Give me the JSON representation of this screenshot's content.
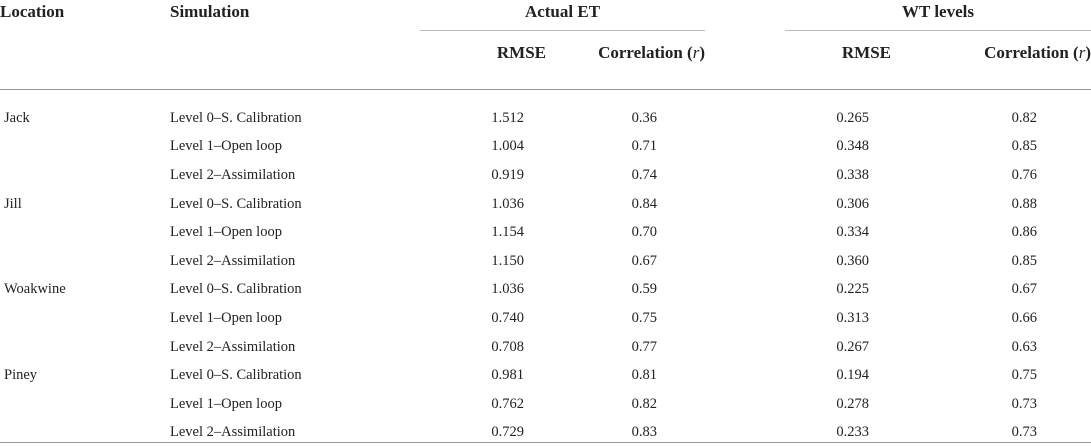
{
  "headers": {
    "location": "Location",
    "simulation": "Simulation",
    "group1": "Actual ET",
    "group2": "WT levels",
    "rmse": "RMSE",
    "correlation_prefix": "Correlation (",
    "correlation_var": "r",
    "correlation_suffix": ")"
  },
  "rows": [
    {
      "location": "Jack",
      "simulation": "Level 0–S. Calibration",
      "et_rmse": "1.512",
      "et_r": "0.36",
      "wt_rmse": "0.265",
      "wt_r": "0.82"
    },
    {
      "location": "",
      "simulation": "Level 1–Open loop",
      "et_rmse": "1.004",
      "et_r": "0.71",
      "wt_rmse": "0.348",
      "wt_r": "0.85"
    },
    {
      "location": "",
      "simulation": "Level 2–Assimilation",
      "et_rmse": "0.919",
      "et_r": "0.74",
      "wt_rmse": "0.338",
      "wt_r": "0.76"
    },
    {
      "location": "Jill",
      "simulation": "Level 0–S. Calibration",
      "et_rmse": "1.036",
      "et_r": "0.84",
      "wt_rmse": "0.306",
      "wt_r": "0.88"
    },
    {
      "location": "",
      "simulation": "Level 1–Open loop",
      "et_rmse": "1.154",
      "et_r": "0.70",
      "wt_rmse": "0.334",
      "wt_r": "0.86"
    },
    {
      "location": "",
      "simulation": "Level 2–Assimilation",
      "et_rmse": "1.150",
      "et_r": "0.67",
      "wt_rmse": "0.360",
      "wt_r": "0.85"
    },
    {
      "location": "Woakwine",
      "simulation": "Level 0–S. Calibration",
      "et_rmse": "1.036",
      "et_r": "0.59",
      "wt_rmse": "0.225",
      "wt_r": "0.67"
    },
    {
      "location": "",
      "simulation": "Level 1–Open loop",
      "et_rmse": "0.740",
      "et_r": "0.75",
      "wt_rmse": "0.313",
      "wt_r": "0.66"
    },
    {
      "location": "",
      "simulation": "Level 2–Assimilation",
      "et_rmse": "0.708",
      "et_r": "0.77",
      "wt_rmse": "0.267",
      "wt_r": "0.63"
    },
    {
      "location": "Piney",
      "simulation": "Level 0–S. Calibration",
      "et_rmse": "0.981",
      "et_r": "0.81",
      "wt_rmse": "0.194",
      "wt_r": "0.75"
    },
    {
      "location": "",
      "simulation": "Level 1–Open loop",
      "et_rmse": "0.762",
      "et_r": "0.82",
      "wt_rmse": "0.278",
      "wt_r": "0.73"
    },
    {
      "location": "",
      "simulation": "Level 2–Assimilation",
      "et_rmse": "0.729",
      "et_r": "0.83",
      "wt_rmse": "0.233",
      "wt_r": "0.73"
    }
  ]
}
